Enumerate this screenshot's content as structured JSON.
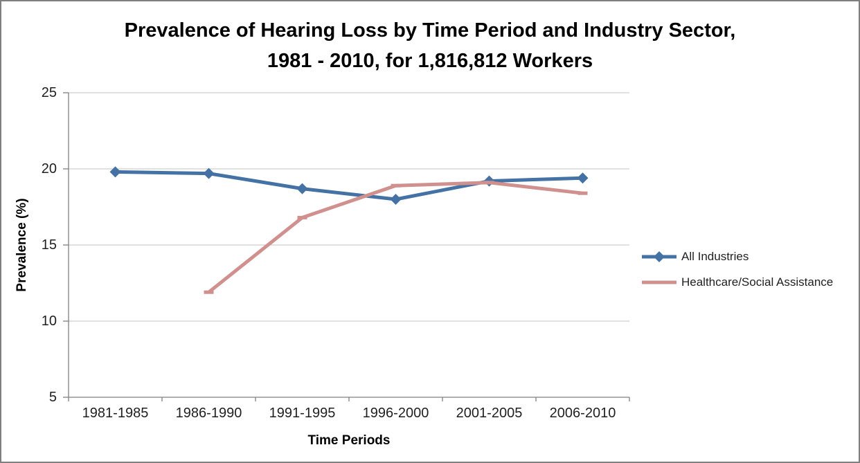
{
  "title": {
    "line1": "Prevalence of Hearing Loss by Time Period and Industry Sector,",
    "line2": "1981 - 2010, for 1,816,812 Workers"
  },
  "chart_data": {
    "type": "line",
    "categories": [
      "1981-1985",
      "1986-1990",
      "1991-1995",
      "1996-2000",
      "2001-2005",
      "2006-2010"
    ],
    "series": [
      {
        "name": "All Industries",
        "color": "#4472A4",
        "marker": "diamond",
        "values": [
          19.8,
          19.7,
          18.7,
          18.0,
          19.2,
          19.4
        ]
      },
      {
        "name": "Healthcare/Social Assistance",
        "color": "#D0908E",
        "marker": "dash",
        "values": [
          null,
          11.9,
          16.8,
          18.9,
          19.1,
          18.4
        ]
      }
    ],
    "xlabel": "Time Periods",
    "ylabel": "Prevalence (%)",
    "ylim": [
      5,
      25
    ],
    "yticks": [
      5,
      10,
      15,
      20,
      25
    ],
    "grid": true,
    "legend_position": "right",
    "axis_color": "#808080",
    "gridline_color": "#C3C3C3"
  }
}
